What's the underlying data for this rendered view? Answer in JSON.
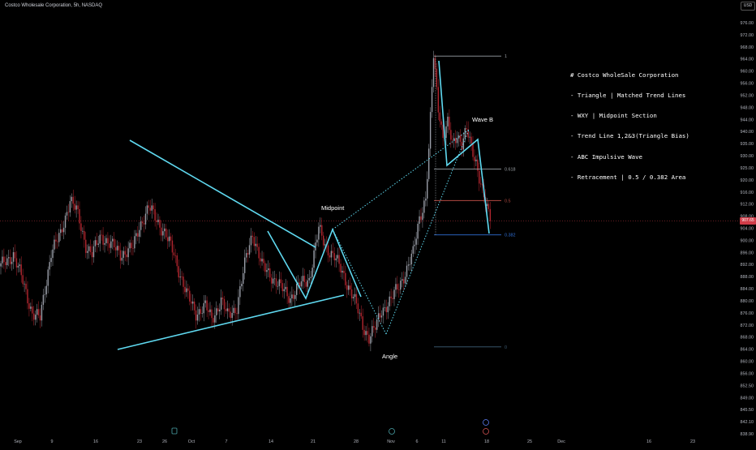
{
  "header": {
    "title": "Costco Wholesale Corporation, 5h, NASDAQ",
    "currency_button": "USD",
    "last_price_tag": "907.65"
  },
  "notes": [
    "# Costco WholeSale Corporation",
    "- Triangle | Matched Trend Lines",
    "- WXY | Midpoint Section",
    "- Trend Line 1,2&3(Triangle Bias)",
    "- ABC Impulsive Wave",
    "- Retracement | 0.5 / 0.382 Area"
  ],
  "colors": {
    "background": "#000000",
    "up_candle": "#9a9ea8",
    "down_candle": "#b3262f",
    "trendline": "#5fd9f0",
    "fib_1": "#9aa0a6",
    "fib_0618": "#9aa0a6",
    "fib_05": "#b24a42",
    "fib_0382": "#2f6fd6",
    "fib_0": "#3f5f78"
  },
  "chart_data": {
    "type": "candlestick",
    "title": "Costco Wholesale Corporation, 5h, NASDAQ",
    "x_tick_labels": [
      "Sep",
      "9",
      "16",
      "23",
      "26",
      "Oct",
      "7",
      "14",
      "21",
      "28",
      "Nov",
      "6",
      "11",
      "18",
      "25",
      "Dec",
      "16",
      "23"
    ],
    "y_tick_labels": [
      "976.00",
      "972.00",
      "968.00",
      "964.00",
      "960.00",
      "956.00",
      "952.00",
      "948.00",
      "944.00",
      "940.00",
      "935.00",
      "930.00",
      "925.00",
      "920.00",
      "916.00",
      "912.00",
      "908.00",
      "904.00",
      "900.00",
      "896.00",
      "892.00",
      "888.00",
      "884.00",
      "880.00",
      "876.00",
      "872.00",
      "868.00",
      "864.00",
      "860.00",
      "856.00",
      "852.50",
      "849.00",
      "845.50",
      "842.10",
      "838.90"
    ],
    "ylim": [
      838.9,
      976.0
    ],
    "last_price": 907.65,
    "price_anchors": [
      {
        "t": 0,
        "p": 893
      },
      {
        "t": 8,
        "p": 897
      },
      {
        "t": 14,
        "p": 888
      },
      {
        "t": 20,
        "p": 878
      },
      {
        "t": 25,
        "p": 876
      },
      {
        "t": 32,
        "p": 898
      },
      {
        "t": 38,
        "p": 903
      },
      {
        "t": 44,
        "p": 915
      },
      {
        "t": 48,
        "p": 911
      },
      {
        "t": 54,
        "p": 900
      },
      {
        "t": 58,
        "p": 897
      },
      {
        "t": 64,
        "p": 903
      },
      {
        "t": 70,
        "p": 900
      },
      {
        "t": 76,
        "p": 897
      },
      {
        "t": 84,
        "p": 899
      },
      {
        "t": 88,
        "p": 906
      },
      {
        "t": 94,
        "p": 912
      },
      {
        "t": 98,
        "p": 909
      },
      {
        "t": 104,
        "p": 904
      },
      {
        "t": 110,
        "p": 897
      },
      {
        "t": 118,
        "p": 884
      },
      {
        "t": 124,
        "p": 878
      },
      {
        "t": 130,
        "p": 880
      },
      {
        "t": 134,
        "p": 876
      },
      {
        "t": 140,
        "p": 882
      },
      {
        "t": 144,
        "p": 877
      },
      {
        "t": 150,
        "p": 880
      },
      {
        "t": 156,
        "p": 896
      },
      {
        "t": 160,
        "p": 904
      },
      {
        "t": 166,
        "p": 893
      },
      {
        "t": 172,
        "p": 890
      },
      {
        "t": 178,
        "p": 886
      },
      {
        "t": 184,
        "p": 883
      },
      {
        "t": 190,
        "p": 887
      },
      {
        "t": 196,
        "p": 889
      },
      {
        "t": 202,
        "p": 905
      },
      {
        "t": 206,
        "p": 900
      },
      {
        "t": 212,
        "p": 896
      },
      {
        "t": 218,
        "p": 890
      },
      {
        "t": 224,
        "p": 883
      },
      {
        "t": 230,
        "p": 874
      },
      {
        "t": 234,
        "p": 870
      },
      {
        "t": 238,
        "p": 873
      },
      {
        "t": 242,
        "p": 879
      },
      {
        "t": 248,
        "p": 882
      },
      {
        "t": 254,
        "p": 888
      },
      {
        "t": 258,
        "p": 892
      },
      {
        "t": 262,
        "p": 897
      },
      {
        "t": 266,
        "p": 909
      },
      {
        "t": 270,
        "p": 915
      },
      {
        "t": 272,
        "p": 930
      },
      {
        "t": 275,
        "p": 961
      },
      {
        "t": 278,
        "p": 945
      },
      {
        "t": 281,
        "p": 935
      },
      {
        "t": 284,
        "p": 939
      },
      {
        "t": 287,
        "p": 932
      },
      {
        "t": 290,
        "p": 936
      },
      {
        "t": 293,
        "p": 933
      },
      {
        "t": 296,
        "p": 937
      },
      {
        "t": 299,
        "p": 931
      },
      {
        "t": 302,
        "p": 927
      },
      {
        "t": 305,
        "p": 920
      },
      {
        "t": 308,
        "p": 913
      },
      {
        "t": 311,
        "p": 907.65
      }
    ],
    "fibonacci_retracement": [
      {
        "level": "1",
        "price": 961.0
      },
      {
        "level": "0.618",
        "price": 924.5
      },
      {
        "level": "0.5",
        "price": 914.3
      },
      {
        "level": "0.382",
        "price": 903.2
      },
      {
        "level": "0",
        "price": 867.0
      }
    ],
    "annotations": [
      {
        "text": "Midpoint"
      },
      {
        "text": "Wave B"
      },
      {
        "text": "Angle"
      }
    ],
    "grid": false,
    "legend": "none"
  }
}
